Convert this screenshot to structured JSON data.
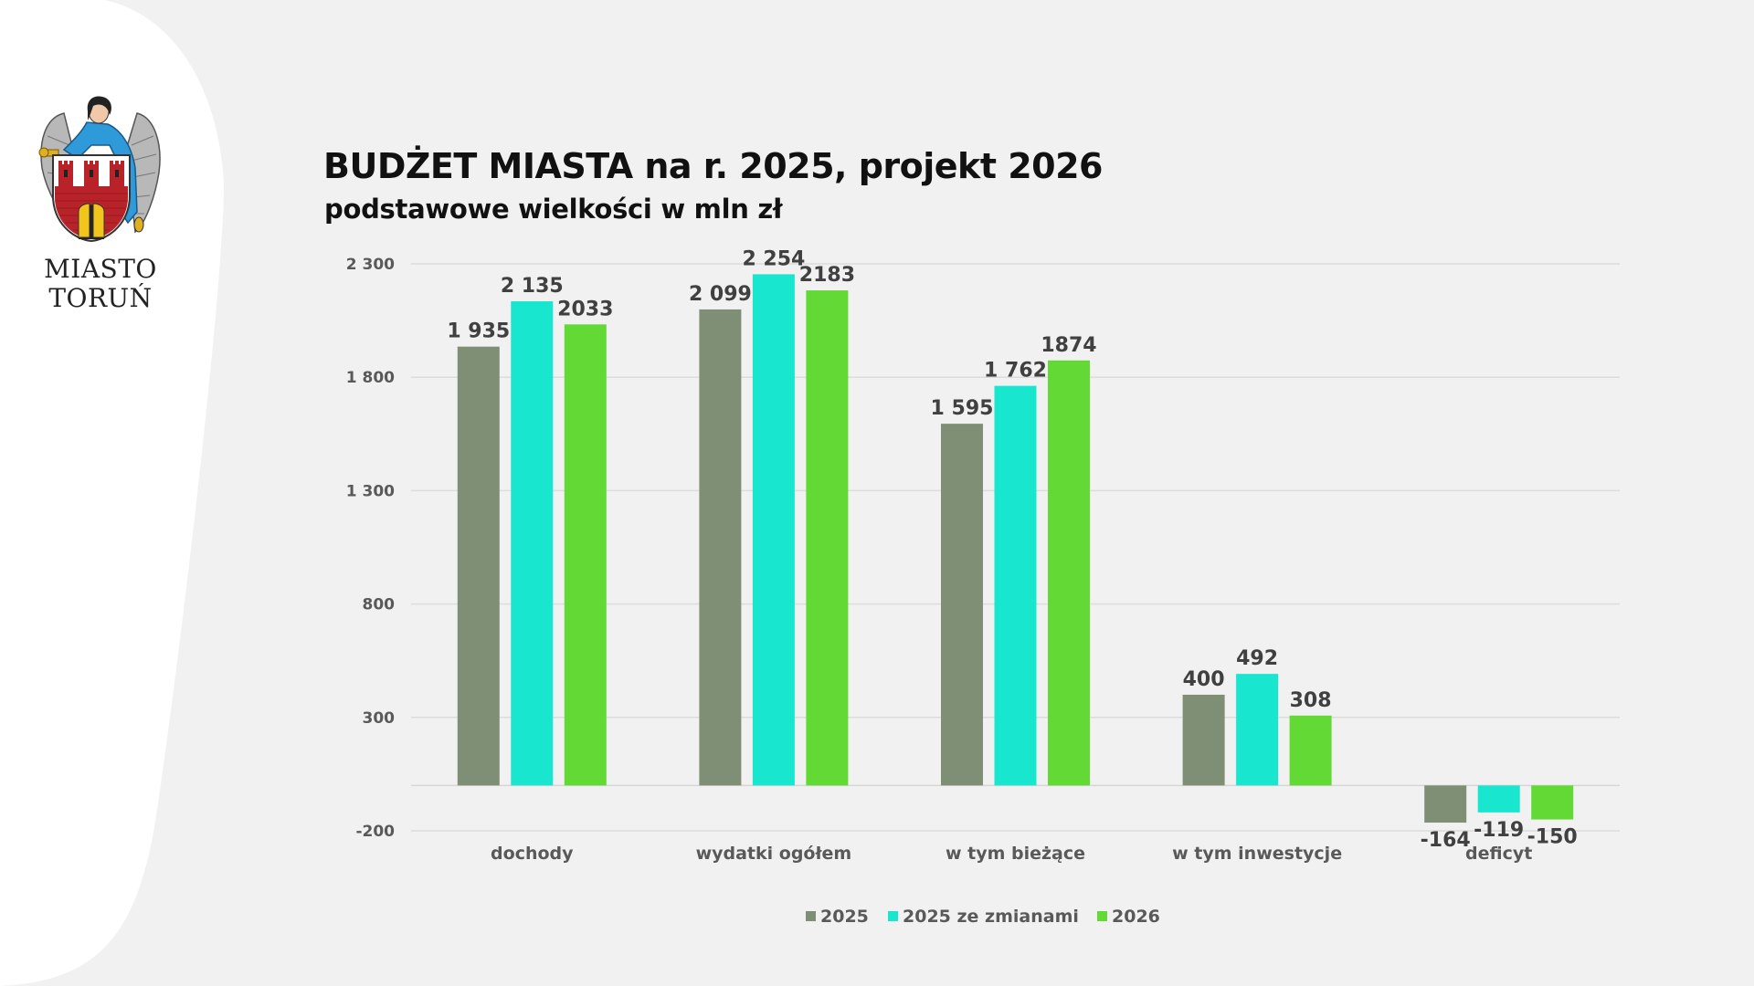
{
  "logo": {
    "line1": "MIASTO",
    "line2": "TORUŃ"
  },
  "header": {
    "title": "BUDŻET MIASTA na r. 2025, projekt 2026",
    "subtitle": "podstawowe wielkości w mln zł"
  },
  "chart_data": {
    "type": "bar",
    "title": "BUDŻET MIASTA na r. 2025, projekt 2026",
    "subtitle": "podstawowe wielkości w mln zł",
    "xlabel": "",
    "ylabel": "",
    "ylim": [
      -200,
      2300
    ],
    "yticks": [
      2300,
      1800,
      1300,
      800,
      300,
      -200
    ],
    "ytick_labels": [
      "2 300",
      "1 800",
      "1 300",
      "800",
      "300",
      "-200"
    ],
    "grid": true,
    "legend_position": "bottom",
    "categories": [
      "dochody",
      "wydatki ogółem",
      "w tym bieżące",
      "w tym inwestycje",
      "deficyt"
    ],
    "series": [
      {
        "name": "2025",
        "color": "#7f8f76",
        "values": [
          1935,
          2099,
          1595,
          400,
          -164
        ],
        "labels": [
          "1 935",
          "2 099",
          "1 595",
          "400",
          "-164"
        ]
      },
      {
        "name": "2025 ze zmianami",
        "color": "#19e6cf",
        "values": [
          2135,
          2254,
          1762,
          492,
          -119
        ],
        "labels": [
          "2 135",
          "2 254",
          "1 762",
          "492",
          "-119"
        ]
      },
      {
        "name": "2026",
        "color": "#62d935",
        "values": [
          2033,
          2183,
          1874,
          308,
          -150
        ],
        "labels": [
          "2033",
          "2183",
          "1874",
          "308",
          "-150"
        ]
      }
    ]
  }
}
